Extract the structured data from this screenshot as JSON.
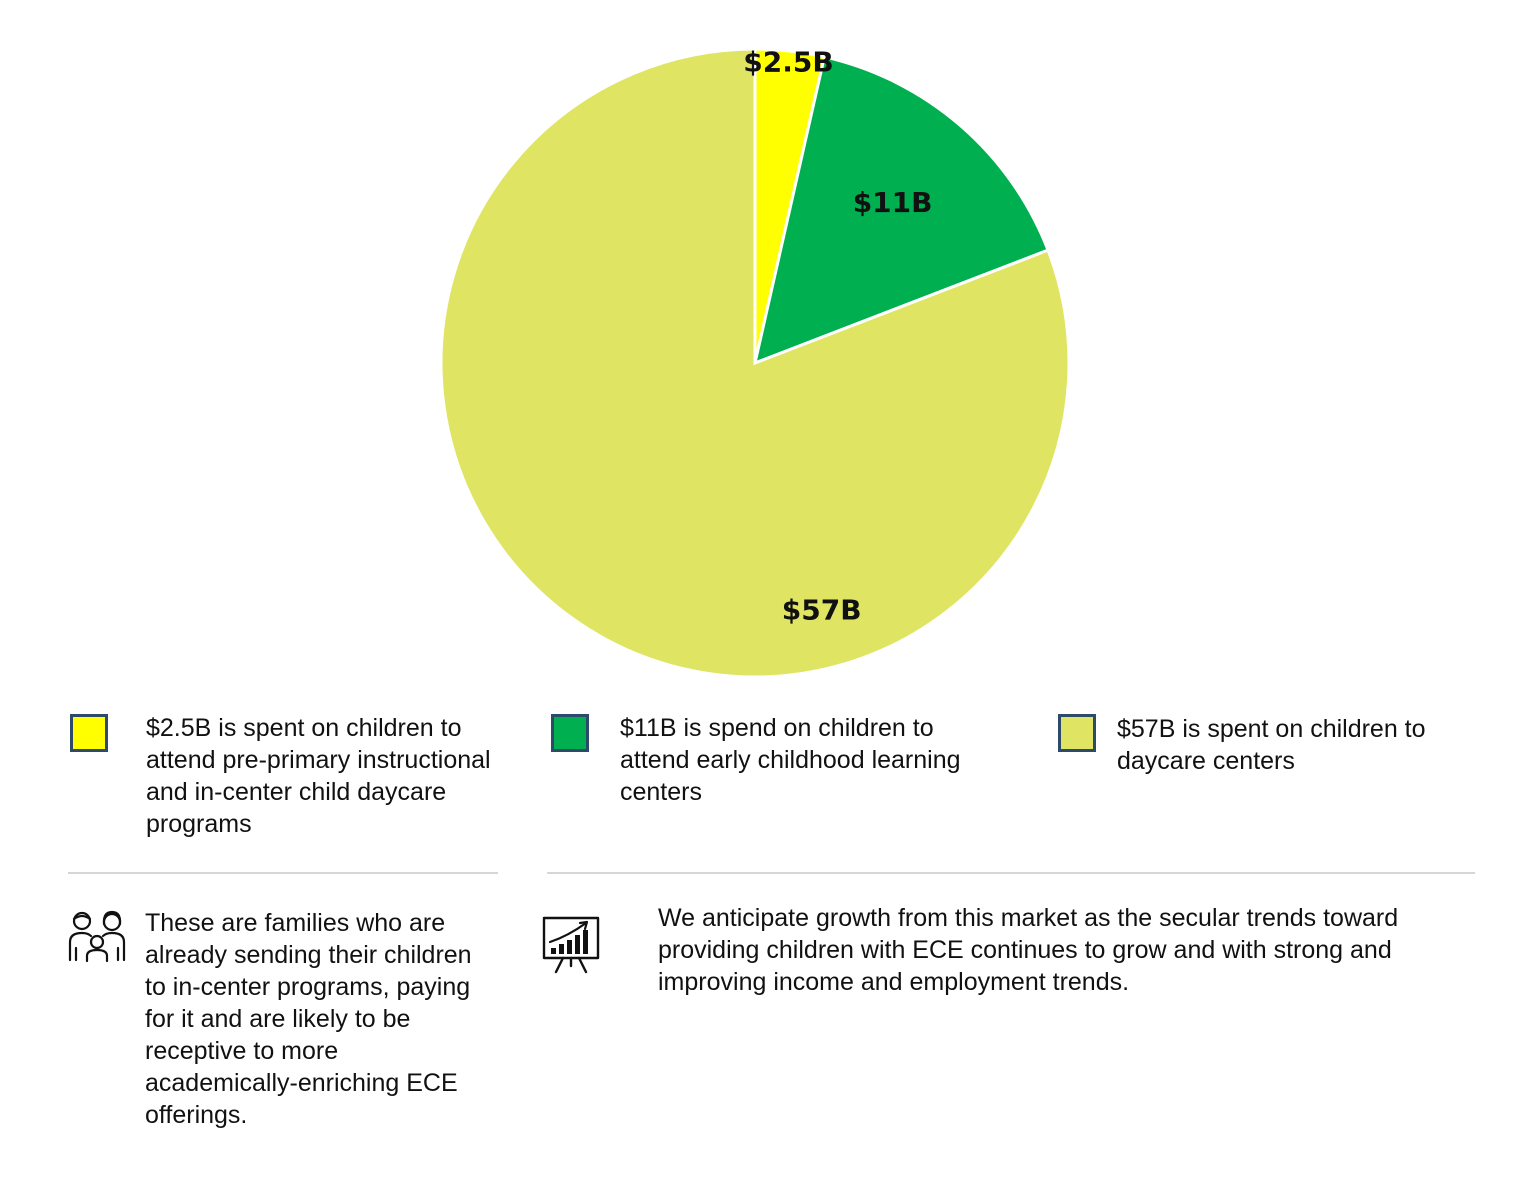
{
  "chart_data": {
    "type": "pie",
    "categories": [
      "$2.5B",
      "$11B",
      "$57B"
    ],
    "values": [
      2.5,
      11,
      57
    ],
    "units": "$B",
    "colors": [
      "#ffff00",
      "#00b050",
      "#dfe562"
    ],
    "data_labels": [
      "$2.5B",
      "$11B",
      "$57B"
    ],
    "title": "",
    "legend_position": "bottom"
  },
  "legend": [
    {
      "color": "#ffff00",
      "text": "$2.5B is spent on children to attend pre-primary instructional and in-center child daycare programs"
    },
    {
      "color": "#00b050",
      "text": "$11B is spend on children to attend early childhood learning centers"
    },
    {
      "color": "#dfe562",
      "text": "$57B is spent on children to daycare centers"
    }
  ],
  "notes": [
    {
      "icon": "family-icon",
      "text": "These are families who are already sending their children to in-center programs, paying for it and are likely to be receptive to more academically-enriching ECE offerings."
    },
    {
      "icon": "growth-chart-icon",
      "text": "We anticipate growth from this market as the secular trends toward providing children with ECE continues to grow and with strong and improving income and employment trends."
    }
  ]
}
